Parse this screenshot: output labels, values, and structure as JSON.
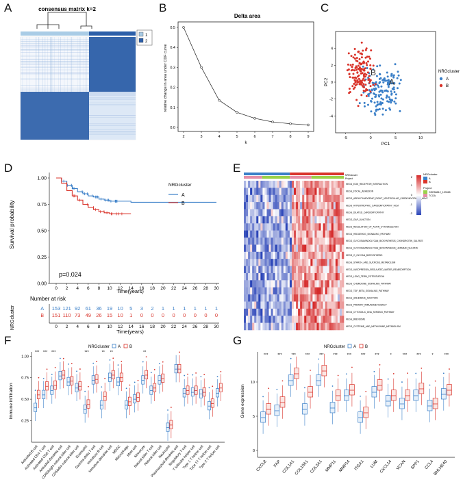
{
  "panels": [
    "A",
    "B",
    "C",
    "D",
    "E",
    "F",
    "G"
  ],
  "colors": {
    "cluster_A": "#3a7fc8",
    "cluster_B": "#d9342b",
    "consensus_dark": "#2b5ea8",
    "heat_high": "#d52b2b",
    "heat_low": "#2b45b8",
    "project_1": "#9bd24a",
    "project_2": "#e58fa8",
    "box_A": "#8db6e3",
    "box_B": "#e88e82"
  },
  "panelA": {
    "title": "consensus matrix k=2",
    "legend": [
      "1",
      "2"
    ]
  },
  "chart_data": [
    {
      "panel": "B",
      "type": "line",
      "title": "Delta area",
      "xlabel": "k",
      "ylabel": "relative change in area under CDF curve",
      "x": [
        2,
        3,
        4,
        5,
        6,
        7,
        8,
        9
      ],
      "y": [
        0.5,
        0.3,
        0.135,
        0.075,
        0.045,
        0.027,
        0.018,
        0.012
      ],
      "xlim": [
        2,
        9
      ],
      "ylim": [
        0.0,
        0.5
      ],
      "yticks": [
        "0.0",
        "0.1",
        "0.2",
        "0.3",
        "0.4",
        "0.5"
      ],
      "xticks": [
        "2",
        "3",
        "4",
        "5",
        "6",
        "7",
        "8",
        "9"
      ]
    },
    {
      "panel": "C",
      "type": "scatter",
      "xlabel": "PC1",
      "ylabel": "PC2",
      "xticks": [
        "-5",
        "0",
        "5",
        "10"
      ],
      "yticks": [
        "4",
        "2",
        "0",
        "-2",
        "-4"
      ],
      "legend_title": "NRGcluster",
      "series": [
        {
          "name": "A"
        },
        {
          "name": "B"
        }
      ],
      "centroid_labels": [
        "B",
        "A"
      ]
    },
    {
      "panel": "D",
      "type": "line",
      "xlabel": "Time(years)",
      "ylabel": "Survival probability",
      "pvalue": "p=0.024",
      "legend_title": "NRGcluster",
      "xticks": [
        "0",
        "2",
        "4",
        "6",
        "8",
        "10",
        "12",
        "14",
        "16",
        "18",
        "20",
        "22",
        "24",
        "26",
        "28",
        "30"
      ],
      "yticks": [
        "1.00",
        "0.75",
        "0.50",
        "0.25",
        "0.00"
      ],
      "series": [
        {
          "name": "A",
          "x": [
            0,
            1,
            2,
            3,
            4,
            5,
            6,
            7,
            8,
            9,
            10,
            12,
            14,
            20,
            30
          ],
          "y": [
            1.0,
            0.97,
            0.93,
            0.9,
            0.87,
            0.85,
            0.83,
            0.82,
            0.8,
            0.79,
            0.78,
            0.78,
            0.77,
            0.77,
            0.77
          ]
        },
        {
          "name": "B",
          "x": [
            0,
            1,
            2,
            3,
            4,
            5,
            6,
            7,
            8,
            9,
            10,
            12,
            14
          ],
          "y": [
            1.0,
            0.95,
            0.88,
            0.83,
            0.79,
            0.75,
            0.72,
            0.7,
            0.68,
            0.67,
            0.66,
            0.66,
            0.66
          ]
        }
      ],
      "risk_table": {
        "title": "Number at risk",
        "ylabel": "NRGcluster",
        "xlabel": "Time(years)",
        "rows": [
          {
            "name": "A",
            "values": [
              "153",
              "121",
              "92",
              "61",
              "36",
              "19",
              "10",
              "5",
              "3",
              "2",
              "1",
              "1",
              "1",
              "1",
              "1",
              "1"
            ]
          },
          {
            "name": "B",
            "values": [
              "151",
              "110",
              "73",
              "49",
              "26",
              "15",
              "10",
              "1",
              "0",
              "0",
              "0",
              "0",
              "0",
              "0",
              "0",
              "0"
            ]
          }
        ]
      }
    },
    {
      "panel": "E",
      "type": "heatmap",
      "legend_cluster_title": "NRGcluster",
      "legend_cluster": [
        "A",
        "B"
      ],
      "legend_project_title": "Project",
      "legend_project": [
        "GSE58812_120065",
        "TCGA"
      ],
      "annotation_labels": [
        "NRGcluster",
        "Project"
      ],
      "scale": [
        "2",
        "1",
        "0",
        "-1",
        "-2"
      ],
      "rows": [
        "KEGG_ECM_RECEPTOR_INTERACTION",
        "KEGG_FOCAL_ADHESION",
        "KEGG_ARRHYTHMOGENIC_RIGHT_VENTRICULAR_CARDIOMYOPATHY_ARVC",
        "KEGG_HYPERTROPHIC_CARDIOMYOPATHY_HCM",
        "KEGG_DILATED_CARDIOMYOPATHY",
        "KEGG_GAP_JUNCTION",
        "KEGG_REGULATION_OF_ACTIN_CYTOSKELETON",
        "KEGG_HEDGEHOG_SIGNALING_PATHWAY",
        "KEGG_GLYCOSAMINOGLYCAN_BIOSYNTHESIS_CHONDROITIN_SULFATE",
        "KEGG_GLYCOSAMINOGLYCAN_BIOSYNTHESIS_HEPARAN_SULFATE",
        "KEGG_O_GLYCAN_BIOSYNTHESIS",
        "KEGG_STARCH_AND_SUCROSE_METABOLISM",
        "KEGG_VASOPRESSIN_REGULATED_WATER_REABSORPTION",
        "KEGG_LONG_TERM_POTENTIATION",
        "KEGG_CHEMOKINE_SIGNALING_PATHWAY",
        "KEGG_TGF_BETA_SIGNALING_PATHWAY",
        "KEGG_ADHERENS_JUNCTION",
        "KEGG_PRIMARY_IMMUNODEFICIENCY",
        "KEGG_CYTOSOLIC_DNA_SENSING_PATHWAY",
        "KEGG_RIBOSOME",
        "KEGG_CYSTEINE_AND_METHIONINE_METABOLISM"
      ]
    },
    {
      "panel": "F",
      "type": "bar",
      "subtype": "boxplot",
      "legend_title": "NRGcluster",
      "series": [
        {
          "name": "A"
        },
        {
          "name": "B"
        }
      ],
      "ylabel": "Immune infiltration",
      "yticks": [
        "0.25",
        "0.50",
        "0.75",
        "1.00"
      ],
      "ylim": [
        0.0,
        1.0
      ],
      "categories": [
        "Activated B cell",
        "Activated CD4 T cell",
        "Activated CD8 T cell",
        "Activated dendritic cell",
        "CD56bright natural killer cell",
        "CD56dim natural killer cell",
        "Eosinophil",
        "Gamma delta T cell",
        "Immature B cell",
        "Immature dendritic cell",
        "MDSC",
        "Macrophage",
        "Mast cell",
        "Monocyte",
        "Natural killer T cell",
        "Natural killer cell",
        "Neutrophil",
        "Plasmacytoid dendritic cell",
        "Regulatory T cell",
        "T follicular helper cell",
        "Type 1 T helper cell",
        "Type 17 T helper cell",
        "Type 2 T helper cell"
      ],
      "significance": [
        "***",
        "***",
        "***",
        "",
        "",
        "",
        "***",
        "",
        "**",
        "**",
        "",
        "",
        "",
        "**",
        "",
        "",
        "",
        "",
        "",
        "",
        "",
        "",
        ""
      ],
      "medians_A": [
        0.4,
        0.55,
        0.6,
        0.77,
        0.7,
        0.63,
        0.38,
        0.72,
        0.43,
        0.75,
        0.7,
        0.43,
        0.5,
        0.72,
        0.6,
        0.72,
        0.17,
        0.85,
        0.57,
        0.58,
        0.56,
        0.42,
        0.57
      ],
      "medians_B": [
        0.55,
        0.65,
        0.66,
        0.78,
        0.71,
        0.65,
        0.44,
        0.73,
        0.53,
        0.78,
        0.75,
        0.47,
        0.52,
        0.78,
        0.63,
        0.74,
        0.2,
        0.85,
        0.6,
        0.6,
        0.58,
        0.45,
        0.63
      ]
    },
    {
      "panel": "G",
      "type": "bar",
      "subtype": "boxplot",
      "legend_title": "NRGcluster",
      "series": [
        {
          "name": "A"
        },
        {
          "name": "B"
        }
      ],
      "ylabel": "Gene expression",
      "yticks": [
        "0",
        "5",
        "10"
      ],
      "ylim": [
        -1,
        14
      ],
      "categories": [
        "CXCL8",
        "FAP",
        "COL1A1",
        "COL10A1",
        "COL3A1",
        "MMP11",
        "MMP14",
        "ITGA1",
        "LUM",
        "CXCL14",
        "VCAN",
        "SPP1",
        "CCL4",
        "BHLHE40"
      ],
      "significance": [
        "***",
        "***",
        "***",
        "***",
        "***",
        "***",
        "***",
        "***",
        "***",
        "*",
        "***",
        "***",
        "*",
        "***"
      ],
      "medians_A": [
        4.8,
        5.8,
        10.2,
        6.0,
        10.2,
        6.2,
        8.0,
        4.8,
        8.5,
        7.2,
        6.8,
        8.0,
        6.5,
        8.2
      ],
      "medians_B": [
        6.0,
        7.0,
        11.2,
        8.5,
        11.6,
        8.0,
        8.8,
        5.5,
        9.5,
        8.0,
        8.0,
        9.0,
        6.8,
        8.8
      ]
    }
  ]
}
